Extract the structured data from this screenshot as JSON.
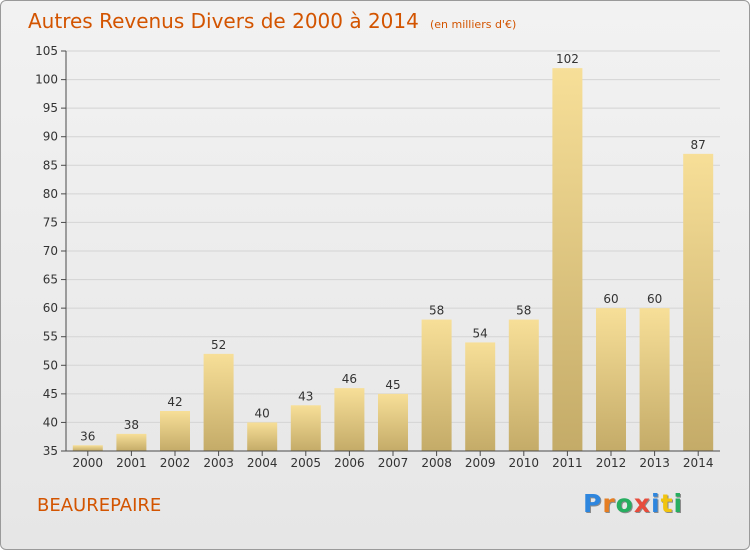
{
  "header": {
    "title": "Autres Revenus Divers de 2000 à 2014",
    "subtitle": "(en milliers d'€)"
  },
  "town": "BEAUREPAIRE",
  "logo": {
    "text": "Proxiti",
    "letter_colors": [
      "#2e86de",
      "#e67e22",
      "#27ae60",
      "#e74c3c",
      "#2e86de",
      "#f1c40f",
      "#27ae60"
    ]
  },
  "colors": {
    "accent": "#d35400",
    "bar_light": "#f7df98",
    "bar_dark": "#c4ab68",
    "grid": "#d4d4d4",
    "axis": "#4a4a4a"
  },
  "chart_data": {
    "type": "bar",
    "title": "Autres Revenus Divers de 2000 à 2014",
    "subtitle": "(en milliers d'€)",
    "categories": [
      "2000",
      "2001",
      "2002",
      "2003",
      "2004",
      "2005",
      "2006",
      "2007",
      "2008",
      "2009",
      "2010",
      "2011",
      "2012",
      "2013",
      "2014"
    ],
    "values": [
      36,
      38,
      42,
      52,
      40,
      43,
      46,
      45,
      58,
      54,
      58,
      102,
      60,
      60,
      87
    ],
    "ylim": [
      35,
      105
    ],
    "yticks": [
      35,
      40,
      45,
      50,
      55,
      60,
      65,
      70,
      75,
      80,
      85,
      90,
      95,
      100,
      105
    ],
    "grid": true,
    "data_labels": true
  }
}
